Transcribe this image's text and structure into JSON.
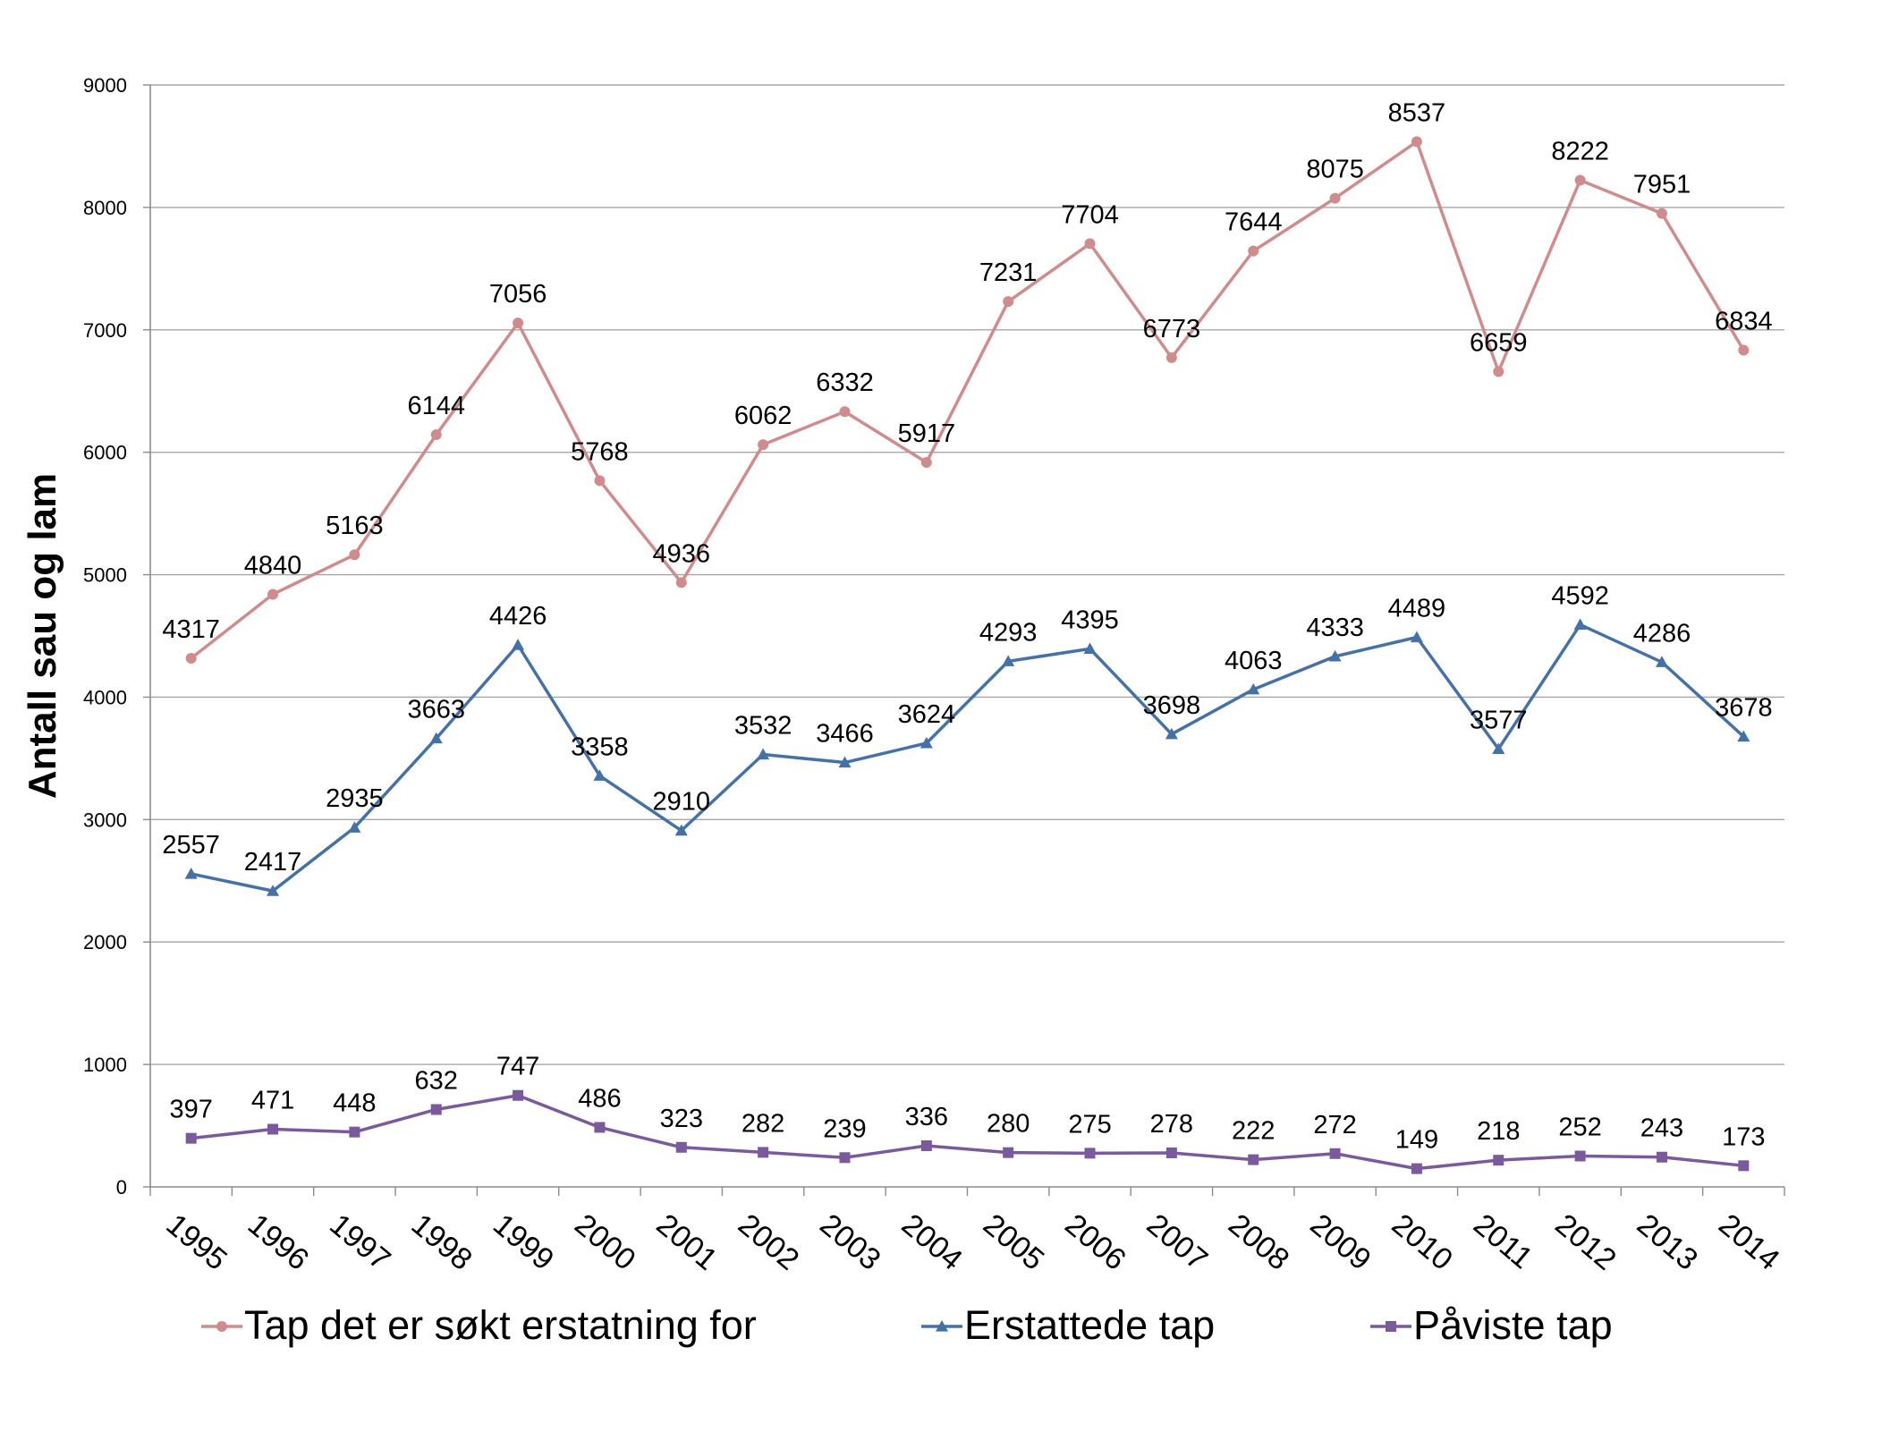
{
  "chart_data": {
    "type": "line",
    "ylabel": "Antall sau og lam",
    "xlabel": "",
    "ylim": [
      0,
      9000
    ],
    "yticks": [
      0,
      1000,
      2000,
      3000,
      4000,
      5000,
      6000,
      7000,
      8000,
      9000
    ],
    "grid": true,
    "legend_position": "bottom",
    "categories": [
      "1995",
      "1996",
      "1997",
      "1998",
      "1999",
      "2000",
      "2001",
      "2002",
      "2003",
      "2004",
      "2005",
      "2006",
      "2007",
      "2008",
      "2009",
      "2010",
      "2011",
      "2012",
      "2013",
      "2014"
    ],
    "series": [
      {
        "name": "Tap det er søkt erstatning for",
        "color": "#d08c8c",
        "marker": "circle",
        "values": [
          4317,
          4840,
          5163,
          6144,
          7056,
          5768,
          4936,
          6062,
          6332,
          5917,
          7231,
          7704,
          6773,
          7644,
          8075,
          8537,
          6659,
          8222,
          7951,
          6834
        ]
      },
      {
        "name": "Erstattede tap",
        "color": "#4472a8",
        "marker": "triangle",
        "values": [
          2557,
          2417,
          2935,
          3663,
          4426,
          3358,
          2910,
          3532,
          3466,
          3624,
          4293,
          4395,
          3698,
          4063,
          4333,
          4489,
          3577,
          4592,
          4286,
          3678
        ]
      },
      {
        "name": "Påviste tap",
        "color": "#7a5a9c",
        "marker": "square",
        "values": [
          397,
          471,
          448,
          632,
          747,
          486,
          323,
          282,
          239,
          336,
          280,
          275,
          278,
          222,
          272,
          149,
          218,
          252,
          243,
          173
        ]
      }
    ]
  }
}
